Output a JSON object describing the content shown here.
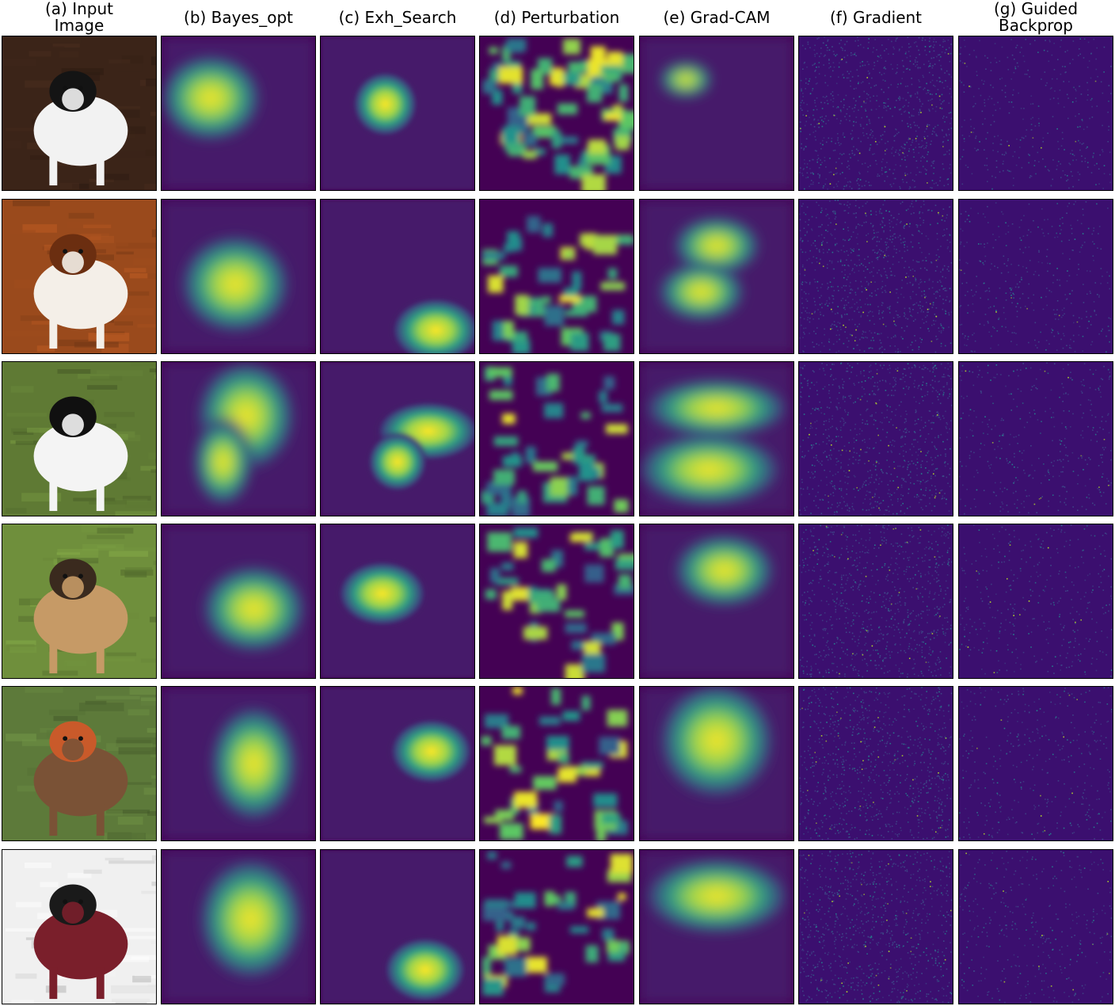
{
  "headers": [
    "(a) Input\nImage",
    "(b) Bayes_opt",
    "(c) Exh_Search",
    "(d) Perturbation",
    "(e) Grad-CAM",
    "(f) Gradient",
    "(g) Guided\nBackprop"
  ],
  "colormap": "viridis",
  "colors": {
    "viridis_low": "#440154",
    "viridis_mid": "#21918c",
    "viridis_high": "#fde725"
  },
  "rows": [
    {
      "subject": "black-and-white japanese chin dog",
      "photo_palette": [
        "#3b2418",
        "#f2f2f2",
        "#141414"
      ]
    },
    {
      "subject": "cavalier king charles spaniel on wooden floor",
      "photo_palette": [
        "#9a4a1c",
        "#f4efe8",
        "#6b2e10"
      ]
    },
    {
      "subject": "papillon dog with ribbon on grass",
      "photo_palette": [
        "#5f7a34",
        "#f4f4f4",
        "#101010"
      ]
    },
    {
      "subject": "afghan hound on grass",
      "photo_palette": [
        "#6f8f3c",
        "#c69a66",
        "#3a2a1e"
      ]
    },
    {
      "subject": "brown terrier in tall grass",
      "photo_palette": [
        "#5d7a3a",
        "#7a5236",
        "#c95a2a"
      ]
    },
    {
      "subject": "boston terrier in red blanket",
      "photo_palette": [
        "#f0f0f0",
        "#7a1f2b",
        "#1a1a1a"
      ]
    }
  ]
}
